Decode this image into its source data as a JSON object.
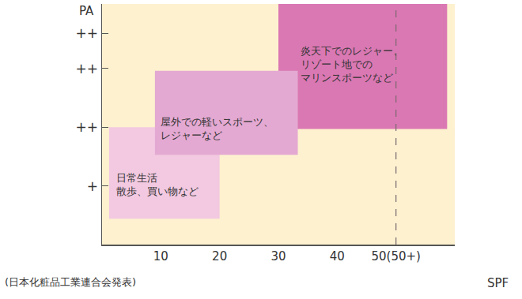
{
  "chart_data": {
    "type": "rect",
    "xlabel": "SPF",
    "ylabel": "PA",
    "note": "(日本化粧品工業連合会発表)",
    "xlim": [
      0,
      60
    ],
    "xticks": [
      10,
      20,
      30,
      40,
      {
        "value": 50,
        "label": "50(50+)"
      }
    ],
    "ylim": [
      0,
      4.1
    ],
    "yticks": [
      {
        "value": 1,
        "label": "+"
      },
      {
        "value": 2,
        "label": "++"
      },
      {
        "value": 3,
        "label": "++"
      },
      {
        "value": 3.6,
        "label": "++"
      }
    ],
    "grid": false,
    "boxes": [
      {
        "label": [
          "日常生活",
          "散歩、買い物など"
        ],
        "x": [
          1.2,
          20
        ],
        "y": [
          0.44,
          2
        ],
        "color": "#f2c9e1"
      },
      {
        "label": [
          "屋外での軽いスポーツ、",
          "レジャーなど"
        ],
        "x": [
          9,
          33.3
        ],
        "y": [
          1.53,
          2.96
        ],
        "color": "#e4a9d2"
      },
      {
        "label": [
          "炎天下でのレジャー、",
          "リゾート地での",
          "マリンスポーツなど"
        ],
        "x": [
          30,
          58.7
        ],
        "y": [
          1.97,
          4.1
        ],
        "color": "#da78b3"
      }
    ],
    "reference_line": {
      "x": 50,
      "line_style": "dash",
      "color": "#7a6a70"
    }
  }
}
